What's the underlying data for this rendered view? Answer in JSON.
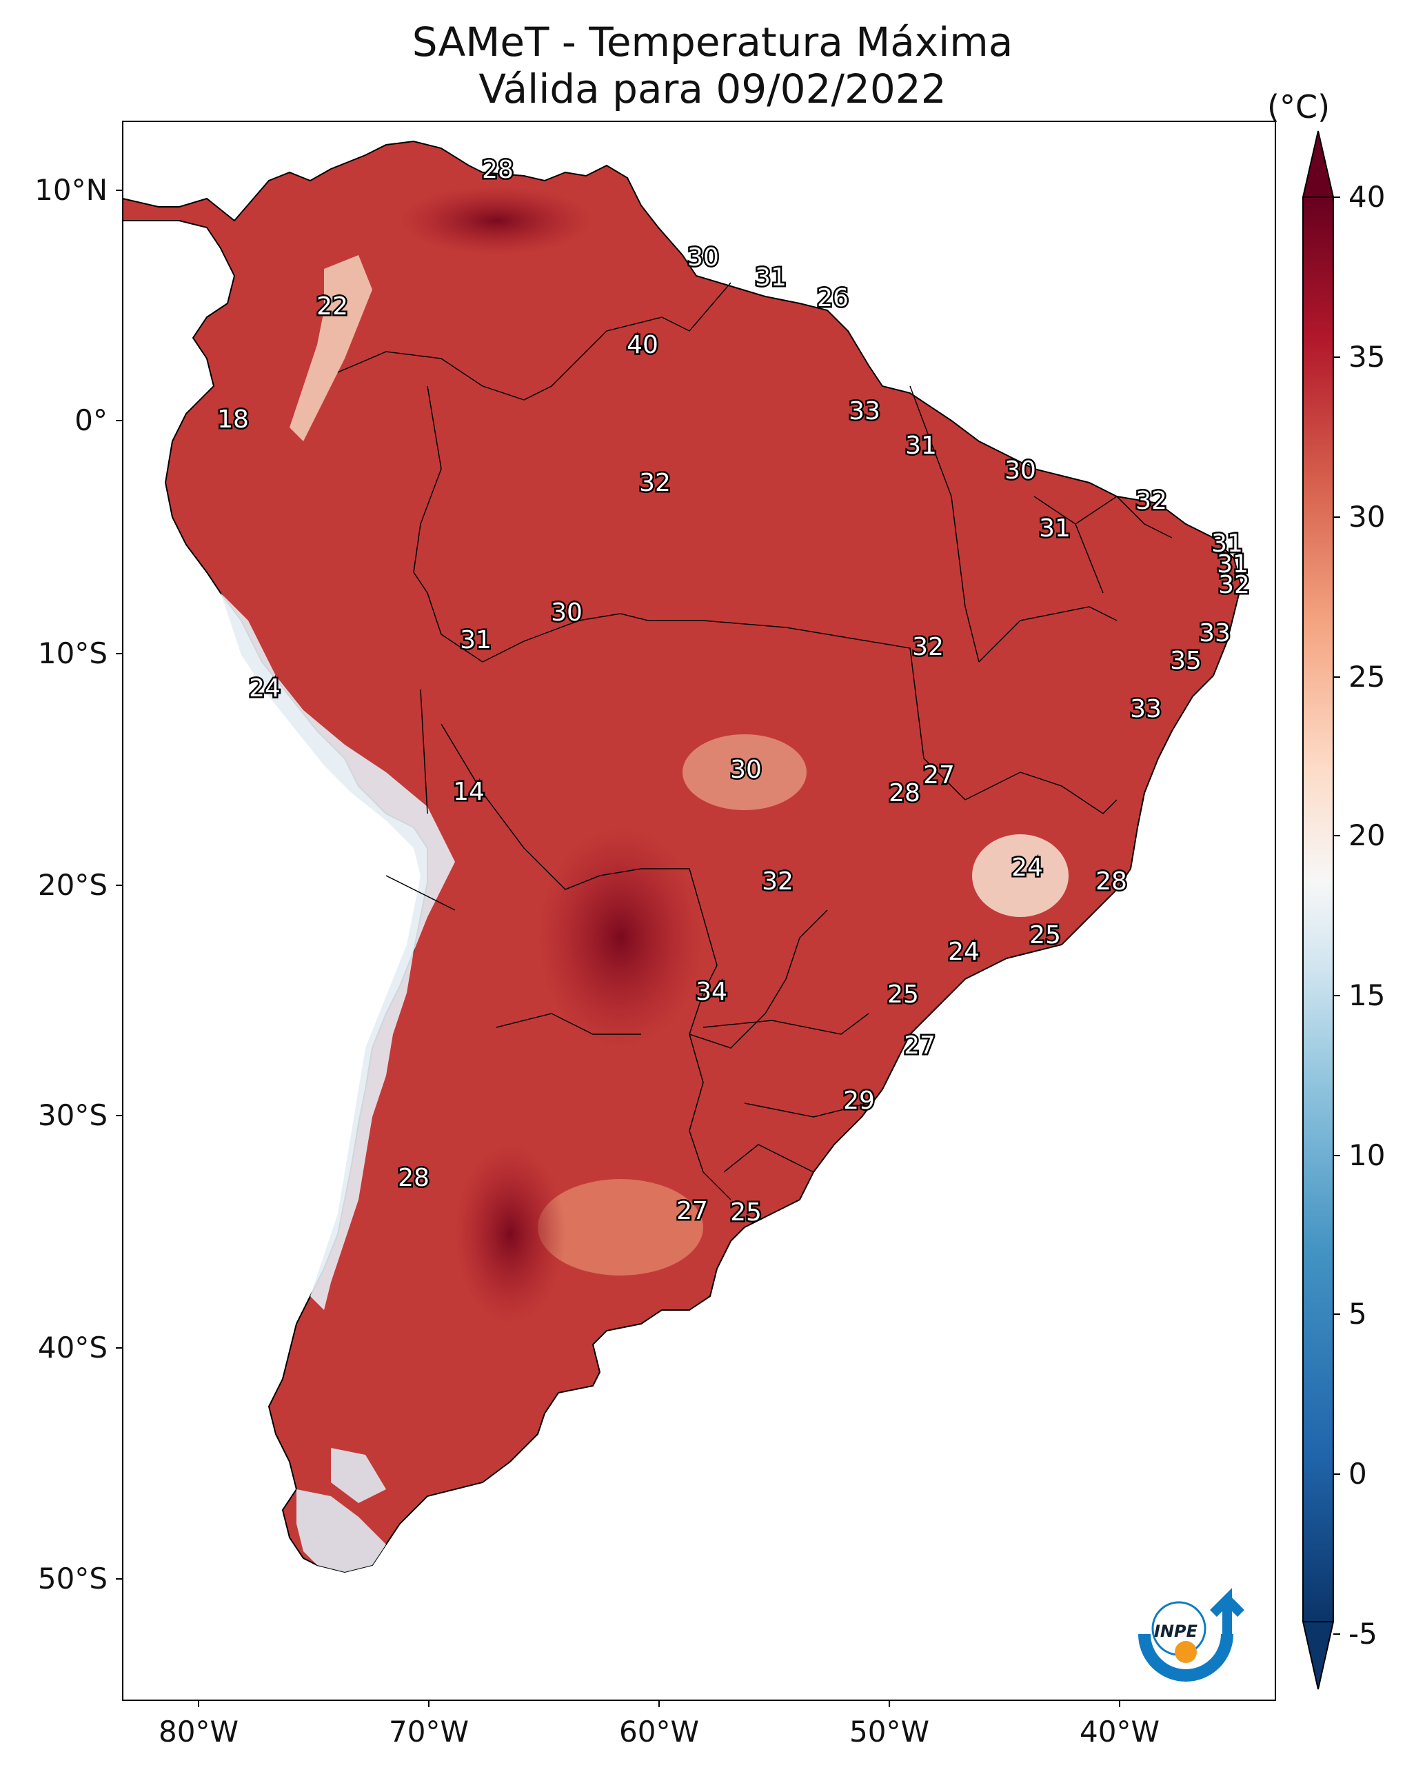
{
  "title": "SAMeT - Temperatura Máxima",
  "subtitle": "Válida para 09/02/2022",
  "colorbar": {
    "unit": "(°C)",
    "ticks": [
      "40",
      "35",
      "30",
      "25",
      "20",
      "15",
      "10",
      "5",
      "0",
      "-5"
    ]
  },
  "axes": {
    "lat_ticks": [
      "10°N",
      "0°",
      "10°S",
      "20°S",
      "30°S",
      "40°S",
      "50°S"
    ],
    "lon_ticks": [
      "80°W",
      "70°W",
      "60°W",
      "50°W",
      "40°W"
    ]
  },
  "logo_text": "INPE",
  "map_labels": [
    {
      "name": "label-28-north",
      "value": "28"
    },
    {
      "name": "label-30-guyana",
      "value": "30"
    },
    {
      "name": "label-31-suriname",
      "value": "31"
    },
    {
      "name": "label-26-fguiana",
      "value": "26"
    },
    {
      "name": "label-22-colombia",
      "value": "22"
    },
    {
      "name": "label-40-roraima",
      "value": "40"
    },
    {
      "name": "label-18-ecuador",
      "value": "18"
    },
    {
      "name": "label-33-amapa",
      "value": "33"
    },
    {
      "name": "label-31-para",
      "value": "31"
    },
    {
      "name": "label-30-maranhao",
      "value": "30"
    },
    {
      "name": "label-32-amazonas",
      "value": "32"
    },
    {
      "name": "label-32-ceara",
      "value": "32"
    },
    {
      "name": "label-31-piaui",
      "value": "31"
    },
    {
      "name": "label-31-rn",
      "value": "31"
    },
    {
      "name": "label-31-paraiba",
      "value": "31"
    },
    {
      "name": "label-32-pernambuco",
      "value": "32"
    },
    {
      "name": "label-30-rondonia",
      "value": "30"
    },
    {
      "name": "label-31-acre",
      "value": "31"
    },
    {
      "name": "label-33-alagoas",
      "value": "33"
    },
    {
      "name": "label-32-tocantins",
      "value": "32"
    },
    {
      "name": "label-35-sergipe",
      "value": "35"
    },
    {
      "name": "label-24-peru",
      "value": "24"
    },
    {
      "name": "label-33-bahia",
      "value": "33"
    },
    {
      "name": "label-14-andes",
      "value": "14"
    },
    {
      "name": "label-30-mt",
      "value": "30"
    },
    {
      "name": "label-27-df",
      "value": "27"
    },
    {
      "name": "label-28-goias",
      "value": "28"
    },
    {
      "name": "label-24-mg",
      "value": "24"
    },
    {
      "name": "label-28-es",
      "value": "28"
    },
    {
      "name": "label-32-ms",
      "value": "32"
    },
    {
      "name": "label-25-rj",
      "value": "25"
    },
    {
      "name": "label-24-sp",
      "value": "24"
    },
    {
      "name": "label-34-paraguay",
      "value": "34"
    },
    {
      "name": "label-25-parana",
      "value": "25"
    },
    {
      "name": "label-27-sc",
      "value": "27"
    },
    {
      "name": "label-29-rs",
      "value": "29"
    },
    {
      "name": "label-28-chile",
      "value": "28"
    },
    {
      "name": "label-27-argentina",
      "value": "27"
    },
    {
      "name": "label-25-uruguay",
      "value": "25"
    }
  ]
}
